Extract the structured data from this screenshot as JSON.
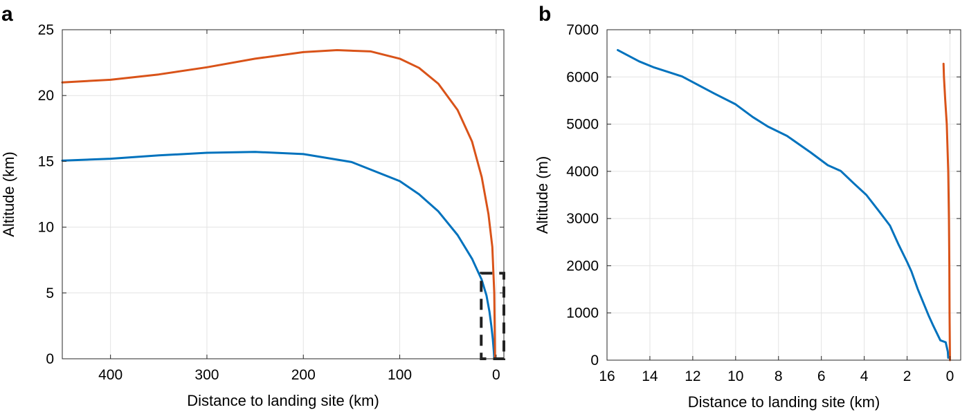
{
  "chart_data": [
    {
      "panel": "a",
      "type": "line",
      "xlabel": "Distance to landing site (km)",
      "ylabel": "Altitude (km)",
      "xlim": [
        450,
        -8
      ],
      "ylim": [
        0,
        25
      ],
      "x_reversed": true,
      "xticks": [
        400,
        300,
        200,
        100,
        0
      ],
      "yticks": [
        0,
        5,
        10,
        15,
        20,
        25
      ],
      "grid": true,
      "legend": "none",
      "series": [
        {
          "color": "#0072bd",
          "points": [
            [
              450,
              15.05
            ],
            [
              400,
              15.2
            ],
            [
              350,
              15.45
            ],
            [
              300,
              15.65
            ],
            [
              250,
              15.72
            ],
            [
              200,
              15.55
            ],
            [
              150,
              14.95
            ],
            [
              100,
              13.5
            ],
            [
              80,
              12.5
            ],
            [
              60,
              11.2
            ],
            [
              40,
              9.4
            ],
            [
              25,
              7.6
            ],
            [
              15,
              6.0
            ],
            [
              10,
              4.8
            ],
            [
              7,
              3.6
            ],
            [
              5,
              2.5
            ],
            [
              3.5,
              1.5
            ],
            [
              2.5,
              0.6
            ],
            [
              2,
              0
            ]
          ]
        },
        {
          "color": "#d95319",
          "points": [
            [
              450,
              21.0
            ],
            [
              400,
              21.2
            ],
            [
              350,
              21.6
            ],
            [
              300,
              22.15
            ],
            [
              250,
              22.8
            ],
            [
              200,
              23.3
            ],
            [
              165,
              23.45
            ],
            [
              130,
              23.35
            ],
            [
              100,
              22.8
            ],
            [
              80,
              22.1
            ],
            [
              60,
              20.9
            ],
            [
              40,
              18.9
            ],
            [
              25,
              16.5
            ],
            [
              15,
              13.8
            ],
            [
              8,
              11.0
            ],
            [
              4,
              8.5
            ],
            [
              2,
              5.0
            ],
            [
              1.5,
              2.0
            ],
            [
              1.2,
              0
            ]
          ]
        }
      ],
      "annotation": {
        "kind": "dashed-rectangle",
        "x_range": [
          15.5,
          -8
        ],
        "y_range": [
          0,
          6.5
        ]
      }
    },
    {
      "panel": "b",
      "type": "line",
      "xlabel": "Distance to landing site (km)",
      "ylabel": "Altitude (m)",
      "xlim": [
        16,
        -0.5
      ],
      "ylim": [
        0,
        7000
      ],
      "x_reversed": true,
      "xticks": [
        16,
        14,
        12,
        10,
        8,
        6,
        4,
        2,
        0
      ],
      "yticks": [
        0,
        1000,
        2000,
        3000,
        4000,
        5000,
        6000,
        7000
      ],
      "grid": true,
      "legend": "none",
      "series": [
        {
          "color": "#0072bd",
          "points": [
            [
              15.5,
              6570
            ],
            [
              14.5,
              6330
            ],
            [
              13.8,
              6200
            ],
            [
              12.5,
              6010
            ],
            [
              11,
              5650
            ],
            [
              10,
              5420
            ],
            [
              9.2,
              5150
            ],
            [
              8.5,
              4950
            ],
            [
              7.6,
              4750
            ],
            [
              6.5,
              4400
            ],
            [
              5.7,
              4130
            ],
            [
              5.1,
              4010
            ],
            [
              4.5,
              3750
            ],
            [
              3.9,
              3500
            ],
            [
              3.3,
              3150
            ],
            [
              2.8,
              2850
            ],
            [
              2.4,
              2450
            ],
            [
              2,
              2080
            ],
            [
              1.8,
              1880
            ],
            [
              1.5,
              1500
            ],
            [
              1,
              950
            ],
            [
              0.8,
              750
            ],
            [
              0.45,
              420
            ],
            [
              0.2,
              380
            ],
            [
              0.1,
              180
            ],
            [
              0.08,
              50
            ]
          ]
        },
        {
          "color": "#d95319",
          "points": [
            [
              0.3,
              6280
            ],
            [
              0.28,
              6000
            ],
            [
              0.22,
              5500
            ],
            [
              0.15,
              5000
            ],
            [
              0.08,
              4000
            ],
            [
              0.05,
              3000
            ],
            [
              0.03,
              2000
            ],
            [
              0.02,
              1000
            ],
            [
              0.0,
              0
            ]
          ]
        }
      ]
    }
  ]
}
